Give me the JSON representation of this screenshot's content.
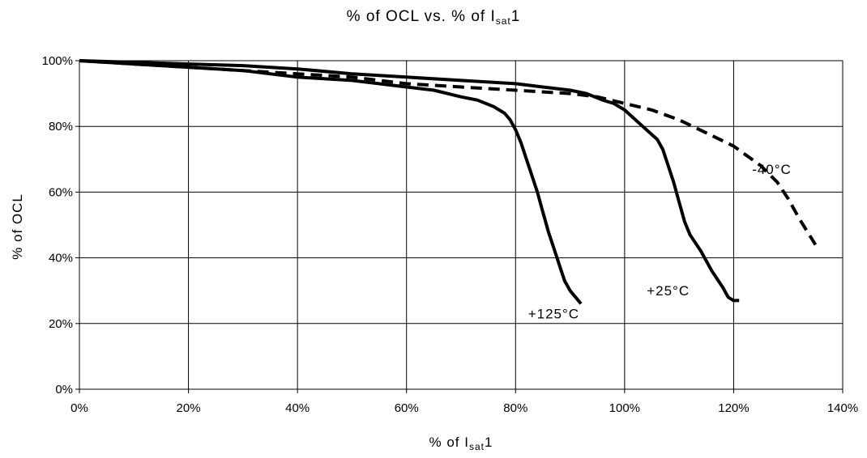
{
  "chart_data": {
    "type": "line",
    "title": {
      "prefix": "% of OCL vs. % of I",
      "sub": "sat",
      "suffix": "1"
    },
    "xlabel": {
      "prefix": "% of I",
      "sub": "sat",
      "suffix": "1"
    },
    "ylabel": "% of OCL",
    "xlim": [
      0,
      140
    ],
    "ylim": [
      0,
      100
    ],
    "xticks": [
      0,
      20,
      40,
      60,
      80,
      100,
      120,
      140
    ],
    "yticks": [
      0,
      20,
      40,
      60,
      80,
      100
    ],
    "xtick_labels": [
      "0%",
      "20%",
      "40%",
      "60%",
      "80%",
      "100%",
      "120%",
      "140%"
    ],
    "ytick_labels": [
      "0%",
      "20%",
      "40%",
      "60%",
      "80%",
      "100%"
    ],
    "grid": true,
    "series": [
      {
        "name": "+125°C",
        "style": "solid",
        "color": "#000000",
        "x": [
          0,
          10,
          20,
          30,
          40,
          50,
          60,
          65,
          70,
          73,
          76,
          78,
          79,
          80,
          81,
          82,
          83,
          84,
          85,
          86,
          87,
          88,
          89,
          90,
          91,
          92
        ],
        "y": [
          100,
          99,
          98,
          97,
          95,
          94,
          92,
          91,
          89,
          88,
          86,
          84,
          82,
          79,
          75,
          70,
          65,
          60,
          54,
          48,
          43,
          38,
          33,
          30,
          28,
          26
        ]
      },
      {
        "name": "+25°C",
        "style": "solid",
        "color": "#000000",
        "x": [
          0,
          10,
          20,
          30,
          40,
          50,
          60,
          70,
          80,
          85,
          90,
          93,
          96,
          98,
          100,
          102,
          104,
          106,
          107,
          108,
          109,
          110,
          111,
          112,
          114,
          116,
          118,
          119,
          120,
          121
        ],
        "y": [
          100,
          99.5,
          99,
          98.5,
          97.5,
          96,
          95,
          94,
          93,
          92,
          91,
          90,
          88,
          87,
          85,
          82,
          79,
          76,
          73,
          68,
          63,
          57,
          51,
          47,
          42,
          36,
          31,
          28,
          27,
          27
        ]
      },
      {
        "name": "-40°C",
        "style": "dashed",
        "color": "#000000",
        "x": [
          0,
          10,
          20,
          30,
          40,
          50,
          60,
          70,
          80,
          90,
          95,
          100,
          105,
          110,
          115,
          120,
          125,
          128,
          130,
          132,
          135
        ],
        "y": [
          100,
          99,
          98,
          97,
          96,
          95,
          93,
          92,
          91,
          90,
          89,
          87,
          85,
          82,
          78,
          74,
          68,
          63,
          58,
          52,
          44
        ]
      }
    ],
    "annotations": [
      {
        "text": "+125°C",
        "x": 87,
        "y": 23
      },
      {
        "text": "+25°C",
        "x": 108,
        "y": 30
      },
      {
        "text": "-40°C",
        "x": 127,
        "y": 67
      }
    ]
  }
}
